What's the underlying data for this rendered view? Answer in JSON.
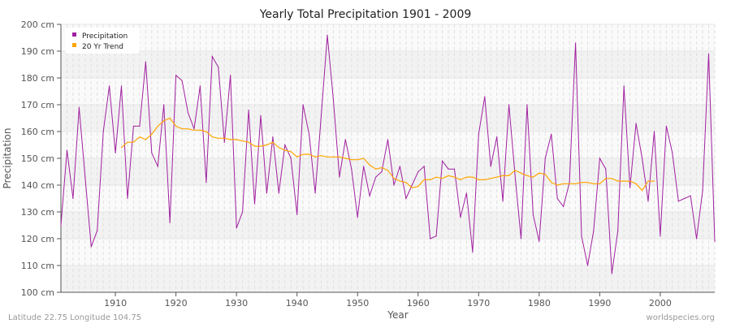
{
  "chart_data": {
    "type": "line",
    "title": "Yearly Total Precipitation 1901 - 2009",
    "xlabel": "Year",
    "ylabel": "Precipitation",
    "xlim": [
      1901,
      2009
    ],
    "ylim": [
      100,
      200
    ],
    "y_unit": "cm",
    "x_ticks": [
      1910,
      1920,
      1930,
      1940,
      1950,
      1960,
      1970,
      1980,
      1990,
      2000
    ],
    "y_ticks": [
      100,
      110,
      120,
      130,
      140,
      150,
      160,
      170,
      180,
      190,
      200
    ],
    "grid": true,
    "legend_placement": "top-left",
    "series": [
      {
        "name": "Precipitation",
        "color": "#a020a0",
        "x_start": 1901,
        "values": [
          125,
          153,
          135,
          169,
          143,
          117,
          123,
          160,
          177,
          152,
          177,
          135,
          162,
          162,
          186,
          152,
          147,
          170,
          126,
          181,
          179,
          167,
          161,
          177,
          141,
          188,
          184,
          156,
          181,
          124,
          130,
          168,
          133,
          166,
          137,
          158,
          137,
          155,
          150,
          129,
          170,
          159,
          137,
          166,
          196,
          172,
          143,
          157,
          146,
          128,
          147,
          136,
          143,
          145,
          157,
          140,
          147,
          135,
          140,
          145,
          147,
          120,
          121,
          149,
          146,
          146,
          128,
          137,
          115,
          159,
          173,
          147,
          158,
          134,
          170,
          144,
          120,
          170,
          129,
          119,
          150,
          159,
          135,
          132,
          141,
          193,
          121,
          110,
          123,
          150,
          146,
          107,
          123,
          177,
          139,
          163,
          150,
          134,
          160,
          121,
          162,
          152,
          134,
          135,
          136,
          120,
          138,
          189,
          119
        ]
      },
      {
        "name": "20 Yr Trend",
        "color": "#ffa500",
        "x_start": 1911,
        "values": [
          154,
          156,
          156,
          158,
          157,
          159,
          162,
          164,
          165,
          162,
          161,
          161,
          160.5,
          160.5,
          160,
          158,
          157.5,
          157.5,
          157,
          157,
          156.5,
          156,
          154.5,
          154.5,
          155,
          156,
          154,
          153,
          152.5,
          150.5,
          151.5,
          151.5,
          150.5,
          151,
          150.5,
          150.5,
          150.5,
          150,
          149.5,
          149.5,
          150,
          147.5,
          146,
          146.5,
          145.5,
          142.5,
          141.5,
          141,
          139,
          139.5,
          142,
          142,
          143,
          142.5,
          143.5,
          143,
          142,
          143,
          143,
          142,
          142,
          142.5,
          143,
          143.5,
          143.5,
          145.5,
          144.5,
          143.5,
          143,
          144.5,
          144,
          141,
          140,
          140.5,
          140.5,
          140.5,
          141,
          141,
          140.5,
          140.5,
          142.5,
          142.5,
          141.5,
          141.5,
          141.5,
          140.5,
          138,
          141.5,
          141.5
        ]
      }
    ]
  },
  "footer": {
    "location": "Latitude 22.75 Longitude 104.75",
    "source": "worldspecies.org"
  }
}
